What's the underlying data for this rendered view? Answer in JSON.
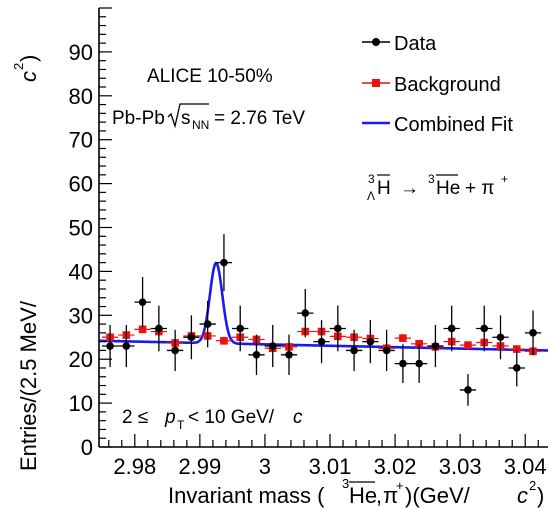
{
  "chart_data": {
    "type": "scatter",
    "xlabel": {
      "prefix": "Invariant mass (",
      "sup3": "3",
      "He": "He",
      "comma": ",",
      "pi": "π",
      "plus": "+",
      "suffix": ")(GeV/",
      "c": "c",
      "sq": "2",
      "close": ")"
    },
    "ylabel": {
      "prefix": "Entries/(2.5 MeV/",
      "c": "c",
      "sq": "2",
      "close": ")"
    },
    "xlim": [
      2.9745,
      3.0435
    ],
    "ylim": [
      0,
      100
    ],
    "x_ticks": [
      {
        "value": 2.98,
        "label": "2.98"
      },
      {
        "value": 2.99,
        "label": "2.99"
      },
      {
        "value": 3.0,
        "label": "3"
      },
      {
        "value": 3.01,
        "label": "3.01"
      },
      {
        "value": 3.02,
        "label": "3.02"
      },
      {
        "value": 3.03,
        "label": "3.03"
      },
      {
        "value": 3.04,
        "label": "3.04"
      }
    ],
    "y_ticks": [
      {
        "value": 0,
        "label": "0"
      },
      {
        "value": 10,
        "label": "10"
      },
      {
        "value": 20,
        "label": "20"
      },
      {
        "value": 30,
        "label": "30"
      },
      {
        "value": 40,
        "label": "40"
      },
      {
        "value": 50,
        "label": "50"
      },
      {
        "value": 60,
        "label": "60"
      },
      {
        "value": 70,
        "label": "70"
      },
      {
        "value": 80,
        "label": "80"
      },
      {
        "value": 90,
        "label": "90"
      }
    ],
    "series": [
      {
        "name": "Data",
        "color": "#000000",
        "marker": "circle",
        "points": [
          {
            "x": 2.9762,
            "y": 23,
            "err": 4.8
          },
          {
            "x": 2.9787,
            "y": 23,
            "err": 4.8
          },
          {
            "x": 2.9812,
            "y": 33,
            "err": 5.7
          },
          {
            "x": 2.9837,
            "y": 27,
            "err": 5.2
          },
          {
            "x": 2.9862,
            "y": 22,
            "err": 4.7
          },
          {
            "x": 2.9887,
            "y": 25,
            "err": 5.0
          },
          {
            "x": 2.9912,
            "y": 28,
            "err": 5.3
          },
          {
            "x": 2.9937,
            "y": 42,
            "err": 6.5
          },
          {
            "x": 2.9962,
            "y": 27,
            "err": 5.2
          },
          {
            "x": 2.9987,
            "y": 21,
            "err": 4.6
          },
          {
            "x": 3.0012,
            "y": 23,
            "err": 4.8
          },
          {
            "x": 3.0037,
            "y": 21,
            "err": 4.6
          },
          {
            "x": 3.0062,
            "y": 30.5,
            "err": 5.5
          },
          {
            "x": 3.0087,
            "y": 24,
            "err": 4.9
          },
          {
            "x": 3.0112,
            "y": 27,
            "err": 5.2
          },
          {
            "x": 3.0137,
            "y": 22,
            "err": 4.7
          },
          {
            "x": 3.0162,
            "y": 24,
            "err": 4.9
          },
          {
            "x": 3.0187,
            "y": 22,
            "err": 4.7
          },
          {
            "x": 3.0212,
            "y": 19,
            "err": 4.4
          },
          {
            "x": 3.0237,
            "y": 19,
            "err": 4.4
          },
          {
            "x": 3.0262,
            "y": 23,
            "err": 4.8
          },
          {
            "x": 3.0287,
            "y": 27,
            "err": 5.2
          },
          {
            "x": 3.0312,
            "y": 13,
            "err": 3.6
          },
          {
            "x": 3.0337,
            "y": 27,
            "err": 5.2
          },
          {
            "x": 3.0362,
            "y": 25,
            "err": 5.0
          },
          {
            "x": 3.0387,
            "y": 18,
            "err": 4.2
          },
          {
            "x": 3.0412,
            "y": 26,
            "err": 5.1
          }
        ]
      },
      {
        "name": "Background",
        "color": "#ee1111",
        "marker": "square",
        "points": [
          {
            "x": 2.9762,
            "y": 25,
            "err": 0.9
          },
          {
            "x": 2.9787,
            "y": 25.5,
            "err": 0.9
          },
          {
            "x": 2.9812,
            "y": 26.8,
            "err": 0.9
          },
          {
            "x": 2.9837,
            "y": 26.3,
            "err": 0.9
          },
          {
            "x": 2.9862,
            "y": 23.7,
            "err": 0.9
          },
          {
            "x": 2.9887,
            "y": 25.3,
            "err": 0.9
          },
          {
            "x": 2.9912,
            "y": 25.3,
            "err": 0.9
          },
          {
            "x": 2.9937,
            "y": 24.2,
            "err": 0.9
          },
          {
            "x": 2.9962,
            "y": 25,
            "err": 0.9
          },
          {
            "x": 2.9987,
            "y": 24.5,
            "err": 0.9
          },
          {
            "x": 3.0012,
            "y": 22.5,
            "err": 0.9
          },
          {
            "x": 3.0037,
            "y": 22.8,
            "err": 0.9
          },
          {
            "x": 3.0062,
            "y": 26.3,
            "err": 0.9
          },
          {
            "x": 3.0087,
            "y": 26.3,
            "err": 0.9
          },
          {
            "x": 3.0112,
            "y": 25.2,
            "err": 0.9
          },
          {
            "x": 3.0137,
            "y": 25,
            "err": 0.9
          },
          {
            "x": 3.0162,
            "y": 24.7,
            "err": 0.9
          },
          {
            "x": 3.0187,
            "y": 22.5,
            "err": 0.9
          },
          {
            "x": 3.0212,
            "y": 24.8,
            "err": 0.9
          },
          {
            "x": 3.0237,
            "y": 23.5,
            "err": 0.9
          },
          {
            "x": 3.0262,
            "y": 22.8,
            "err": 0.9
          },
          {
            "x": 3.0287,
            "y": 24,
            "err": 0.9
          },
          {
            "x": 3.0312,
            "y": 23.2,
            "err": 0.9
          },
          {
            "x": 3.0337,
            "y": 23.8,
            "err": 0.9
          },
          {
            "x": 3.0362,
            "y": 23,
            "err": 0.9
          },
          {
            "x": 3.0387,
            "y": 22.3,
            "err": 0.9
          },
          {
            "x": 3.0412,
            "y": 21.8,
            "err": 0.9
          }
        ]
      },
      {
        "name": "Combined Fit",
        "color": "#1a1aee",
        "type": "line",
        "model": {
          "bg_intercept": 23.7,
          "bg_slope_per_gev": -32,
          "bg_ref_x": 2.99,
          "peak_mean": 2.9925,
          "peak_sigma": 0.00095,
          "peak_amp": 18.3
        }
      }
    ],
    "legend": {
      "position": "top-right",
      "entries": [
        "Data",
        "Background",
        "Combined Fit"
      ]
    },
    "annotations": {
      "alice": "ALICE 10-50%",
      "system": "Pb-Pb",
      "sqrt_s": "s",
      "nn": "NN",
      "energy": "= 2.76 TeV",
      "decay": {
        "sup3a": "3",
        "sub_lambda": "Λ",
        "H": "H",
        "arrow": "→",
        "sup3b": "3",
        "He": "He",
        "plus_pi": "+ π",
        "plus": "+"
      },
      "pt": {
        "lhs": "2 ≤ ",
        "p": "p",
        "T": "T",
        "rhs": "< 10 GeV/",
        "c": "c"
      }
    },
    "grid": false
  }
}
